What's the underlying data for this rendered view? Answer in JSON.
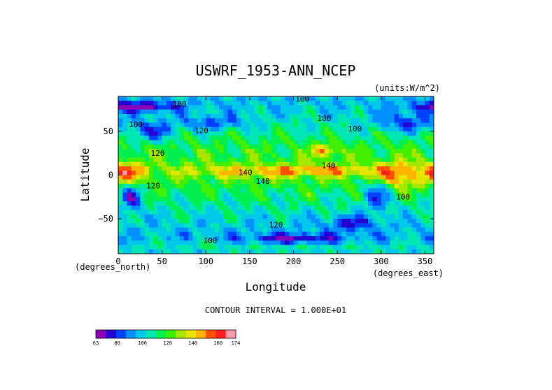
{
  "chart_data": {
    "type": "heatmap",
    "title": "USWRF_1953-ANN_NCEP",
    "units_label": "(units:W/m^2)",
    "xlabel": "Longitude",
    "ylabel": "Latitude",
    "x_unit_label": "(degrees_east)",
    "y_unit_label": "(degrees_north)",
    "xlim": [
      0,
      360
    ],
    "ylim": [
      -90,
      90
    ],
    "x_ticks": [
      0,
      50,
      100,
      150,
      200,
      250,
      300,
      350
    ],
    "y_ticks": [
      -50,
      0,
      50
    ],
    "contour_interval_text": "CONTOUR INTERVAL = 1.000E+01",
    "contour_labels": [
      "100",
      "100",
      "100",
      "100",
      "120",
      "100",
      "120",
      "140",
      "140",
      "140",
      "120",
      "100",
      "120",
      "100"
    ],
    "colorbar": {
      "min": 63,
      "max": 174,
      "tick_labels": [
        "63",
        "80",
        "100",
        "120",
        "140",
        "160",
        "174"
      ],
      "colors": [
        "#8a00b8",
        "#2600d0",
        "#0040ff",
        "#0090ff",
        "#00c8e8",
        "#00e6b4",
        "#00f050",
        "#40f000",
        "#a6e600",
        "#e6e600",
        "#ffb400",
        "#ff5000",
        "#ff1e1e",
        "#ff9aa8"
      ]
    },
    "grid": false
  }
}
